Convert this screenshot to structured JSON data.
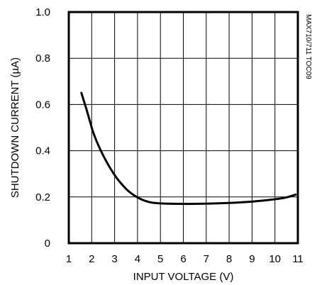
{
  "chart_data": {
    "type": "line",
    "figure_code": "MAX710/711 TOC09",
    "xlabel": "INPUT VOLTAGE (V)",
    "ylabel": "SHUTDOWN CURRENT (µA)",
    "xlim": [
      1,
      11
    ],
    "ylim": [
      0,
      1.0
    ],
    "x_ticks": [
      "1",
      "2",
      "3",
      "4",
      "5",
      "6",
      "7",
      "8",
      "9",
      "10",
      "11"
    ],
    "y_ticks": [
      "0",
      "0.2",
      "0.4",
      "0.6",
      "0.8",
      "1.0"
    ],
    "grid": true,
    "series": [
      {
        "x": [
          1.55,
          1.8,
          2.1,
          2.5,
          3.0,
          3.5,
          4.0,
          4.5,
          5.0,
          6.0,
          7.0,
          8.0,
          9.0,
          10.0,
          10.5,
          10.9
        ],
        "y": [
          0.65,
          0.57,
          0.47,
          0.38,
          0.295,
          0.235,
          0.198,
          0.178,
          0.172,
          0.17,
          0.171,
          0.174,
          0.18,
          0.19,
          0.198,
          0.21
        ]
      }
    ]
  }
}
